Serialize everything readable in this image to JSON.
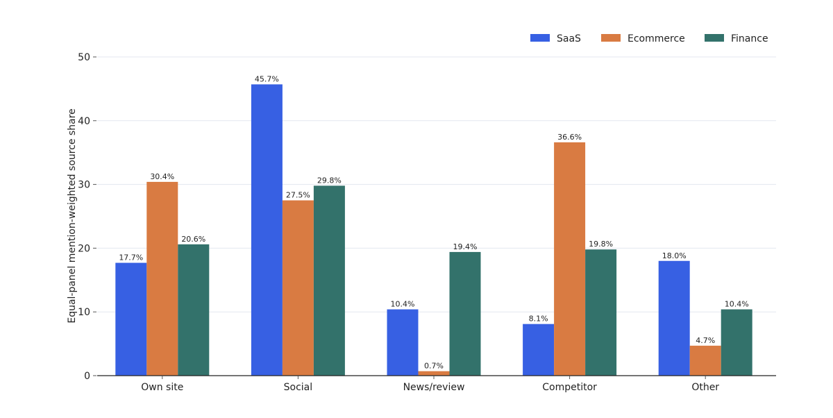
{
  "chart_data": {
    "type": "bar",
    "ylabel": "Equal-panel mention-weighted source share",
    "xlabel": "",
    "ylim": [
      0,
      50
    ],
    "yticks": [
      "0",
      "10",
      "20",
      "30",
      "40",
      "50"
    ],
    "grid": "horizontal",
    "legend_position": "top-right",
    "categories": [
      "Own site",
      "Social",
      "News/review",
      "Competitor",
      "Other"
    ],
    "series": [
      {
        "name": "SaaS",
        "color": "#3760e3",
        "values": [
          17.7,
          45.7,
          10.4,
          8.1,
          18.0
        ],
        "labels": [
          "17.7%",
          "45.7%",
          "10.4%",
          "8.1%",
          "18.0%"
        ]
      },
      {
        "name": "Ecommerce",
        "color": "#d97b42",
        "values": [
          30.4,
          27.5,
          0.7,
          36.6,
          4.7
        ],
        "labels": [
          "30.4%",
          "27.5%",
          "0.7%",
          "36.6%",
          "4.7%"
        ]
      },
      {
        "name": "Finance",
        "color": "#33726b",
        "values": [
          20.6,
          29.8,
          19.4,
          19.8,
          10.4
        ],
        "labels": [
          "20.6%",
          "29.8%",
          "19.4%",
          "19.8%",
          "10.4%"
        ]
      }
    ]
  }
}
